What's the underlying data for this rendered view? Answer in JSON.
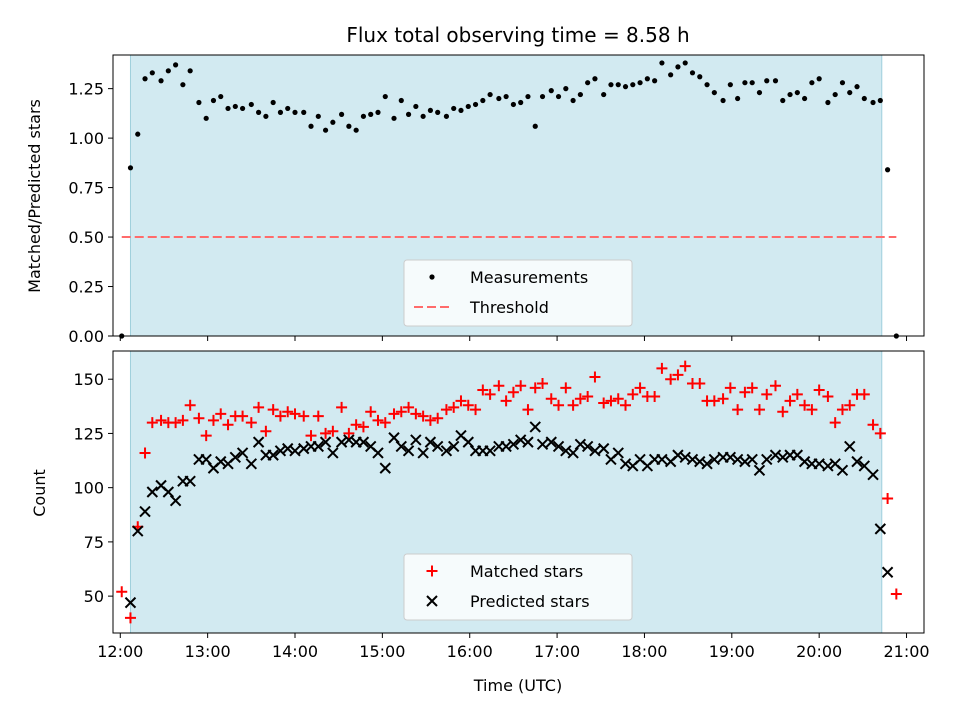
{
  "chart_data": [
    {
      "type": "scatter",
      "title": "Flux total observing time = 8.58 h",
      "ylabel": "Matched/Predicted stars",
      "xlabel": "",
      "ylim": [
        0,
        1.42
      ],
      "xlim": [
        "11:55",
        "21:12"
      ],
      "yticks": [
        "0.00",
        "0.25",
        "0.50",
        "0.75",
        "1.00",
        "1.25"
      ],
      "shaded_region": [
        "12:07",
        "20:43"
      ],
      "threshold": 0.5,
      "legend_position": "lower-center",
      "legend": [
        "Measurements",
        "Threshold"
      ],
      "series": [
        {
          "name": "Measurements",
          "x": [
            "12:01",
            "12:07",
            "12:12",
            "12:17",
            "12:22",
            "12:28",
            "12:33",
            "12:38",
            "12:43",
            "12:48",
            "12:54",
            "12:59",
            "13:04",
            "13:09",
            "13:14",
            "13:19",
            "13:24",
            "13:30",
            "13:35",
            "13:40",
            "13:45",
            "13:50",
            "13:55",
            "14:00",
            "14:06",
            "14:11",
            "14:16",
            "14:21",
            "14:26",
            "14:32",
            "14:37",
            "14:42",
            "14:47",
            "14:52",
            "14:57",
            "15:02",
            "15:08",
            "15:13",
            "15:18",
            "15:23",
            "15:28",
            "15:33",
            "15:38",
            "15:44",
            "15:49",
            "15:54",
            "15:59",
            "16:04",
            "16:09",
            "16:14",
            "16:20",
            "16:25",
            "16:30",
            "16:35",
            "16:40",
            "16:45",
            "16:50",
            "16:56",
            "17:01",
            "17:06",
            "17:11",
            "17:16",
            "17:21",
            "17:26",
            "17:32",
            "17:37",
            "17:42",
            "17:47",
            "17:52",
            "17:57",
            "18:02",
            "18:07",
            "18:12",
            "18:18",
            "18:23",
            "18:28",
            "18:33",
            "18:38",
            "18:43",
            "18:48",
            "18:54",
            "18:59",
            "19:04",
            "19:09",
            "19:14",
            "19:19",
            "19:24",
            "19:30",
            "19:35",
            "19:40",
            "19:45",
            "19:50",
            "19:55",
            "20:00",
            "20:06",
            "20:11",
            "20:16",
            "20:21",
            "20:26",
            "20:31",
            "20:37",
            "20:42",
            "20:47",
            "20:53"
          ],
          "y": [
            0.0,
            0.85,
            1.02,
            1.3,
            1.33,
            1.29,
            1.34,
            1.37,
            1.27,
            1.34,
            1.18,
            1.1,
            1.19,
            1.21,
            1.15,
            1.16,
            1.15,
            1.17,
            1.13,
            1.11,
            1.18,
            1.13,
            1.15,
            1.13,
            1.13,
            1.06,
            1.11,
            1.04,
            1.08,
            1.12,
            1.06,
            1.04,
            1.11,
            1.12,
            1.13,
            1.21,
            1.1,
            1.19,
            1.12,
            1.16,
            1.11,
            1.14,
            1.13,
            1.11,
            1.15,
            1.14,
            1.16,
            1.17,
            1.19,
            1.22,
            1.2,
            1.21,
            1.17,
            1.18,
            1.21,
            1.06,
            1.21,
            1.24,
            1.21,
            1.25,
            1.19,
            1.22,
            1.28,
            1.3,
            1.22,
            1.27,
            1.27,
            1.26,
            1.27,
            1.28,
            1.3,
            1.29,
            1.38,
            1.32,
            1.36,
            1.38,
            1.33,
            1.31,
            1.27,
            1.23,
            1.19,
            1.27,
            1.2,
            1.28,
            1.28,
            1.23,
            1.29,
            1.29,
            1.19,
            1.22,
            1.23,
            1.2,
            1.28,
            1.3,
            1.18,
            1.22,
            1.28,
            1.23,
            1.26,
            1.2,
            1.18,
            1.19,
            0.84,
            0.0
          ]
        },
        {
          "name": "Threshold",
          "x": [
            "12:01",
            "20:53"
          ],
          "y": [
            0.5,
            0.5
          ],
          "style": "dashed",
          "color": "#ff6b6b"
        }
      ]
    },
    {
      "type": "scatter",
      "title": "",
      "ylabel": "Count",
      "xlabel": "Time (UTC)",
      "ylim": [
        33,
        163
      ],
      "xlim": [
        "11:55",
        "21:12"
      ],
      "yticks": [
        "50",
        "75",
        "100",
        "125",
        "150"
      ],
      "xticks": [
        "12:00",
        "13:00",
        "14:00",
        "15:00",
        "16:00",
        "17:00",
        "18:00",
        "19:00",
        "20:00",
        "21:00"
      ],
      "shaded_region": [
        "12:07",
        "20:43"
      ],
      "legend_position": "lower-center",
      "legend": [
        "Matched stars",
        "Predicted stars"
      ],
      "series": [
        {
          "name": "Matched stars",
          "marker": "+",
          "color": "#ff0000",
          "x": [
            "12:01",
            "12:07",
            "12:12",
            "12:17",
            "12:22",
            "12:28",
            "12:33",
            "12:38",
            "12:43",
            "12:48",
            "12:54",
            "12:59",
            "13:04",
            "13:09",
            "13:14",
            "13:19",
            "13:24",
            "13:30",
            "13:35",
            "13:40",
            "13:45",
            "13:50",
            "13:55",
            "14:00",
            "14:06",
            "14:11",
            "14:16",
            "14:21",
            "14:26",
            "14:32",
            "14:37",
            "14:42",
            "14:47",
            "14:52",
            "14:57",
            "15:02",
            "15:08",
            "15:13",
            "15:18",
            "15:23",
            "15:28",
            "15:33",
            "15:38",
            "15:44",
            "15:49",
            "15:54",
            "15:59",
            "16:04",
            "16:09",
            "16:14",
            "16:20",
            "16:25",
            "16:30",
            "16:35",
            "16:40",
            "16:45",
            "16:50",
            "16:56",
            "17:01",
            "17:06",
            "17:11",
            "17:16",
            "17:21",
            "17:26",
            "17:32",
            "17:37",
            "17:42",
            "17:47",
            "17:52",
            "17:57",
            "18:02",
            "18:07",
            "18:12",
            "18:18",
            "18:23",
            "18:28",
            "18:33",
            "18:38",
            "18:43",
            "18:48",
            "18:54",
            "18:59",
            "19:04",
            "19:09",
            "19:14",
            "19:19",
            "19:24",
            "19:30",
            "19:35",
            "19:40",
            "19:45",
            "19:50",
            "19:55",
            "20:00",
            "20:06",
            "20:11",
            "20:16",
            "20:21",
            "20:26",
            "20:31",
            "20:37",
            "20:42",
            "20:47",
            "20:53"
          ],
          "y": [
            52,
            40,
            82,
            116,
            130,
            131,
            130,
            130,
            131,
            138,
            132,
            124,
            131,
            134,
            129,
            133,
            133,
            130,
            137,
            126,
            136,
            133,
            135,
            134,
            133,
            124,
            133,
            125,
            126,
            137,
            125,
            129,
            128,
            135,
            131,
            130,
            134,
            135,
            137,
            134,
            133,
            131,
            132,
            136,
            137,
            140,
            138,
            136,
            145,
            143,
            147,
            140,
            144,
            147,
            136,
            146,
            148,
            141,
            138,
            146,
            138,
            141,
            142,
            151,
            139,
            140,
            141,
            138,
            143,
            146,
            142,
            142,
            155,
            150,
            152,
            156,
            148,
            148,
            140,
            140,
            141,
            146,
            136,
            144,
            146,
            136,
            143,
            147,
            135,
            140,
            143,
            138,
            136,
            145,
            142,
            130,
            136,
            138,
            143,
            143,
            129,
            125,
            95,
            51
          ]
        },
        {
          "name": "Predicted stars",
          "marker": "x",
          "color": "#000000",
          "x": [
            "12:01",
            "12:07",
            "12:12",
            "12:17",
            "12:22",
            "12:28",
            "12:33",
            "12:38",
            "12:43",
            "12:48",
            "12:54",
            "12:59",
            "13:04",
            "13:09",
            "13:14",
            "13:19",
            "13:24",
            "13:30",
            "13:35",
            "13:40",
            "13:45",
            "13:50",
            "13:55",
            "14:00",
            "14:06",
            "14:11",
            "14:16",
            "14:21",
            "14:26",
            "14:32",
            "14:37",
            "14:42",
            "14:47",
            "14:52",
            "14:57",
            "15:02",
            "15:08",
            "15:13",
            "15:18",
            "15:23",
            "15:28",
            "15:33",
            "15:38",
            "15:44",
            "15:49",
            "15:54",
            "15:59",
            "16:04",
            "16:09",
            "16:14",
            "16:20",
            "16:25",
            "16:30",
            "16:35",
            "16:40",
            "16:45",
            "16:50",
            "16:56",
            "17:01",
            "17:06",
            "17:11",
            "17:16",
            "17:21",
            "17:26",
            "17:32",
            "17:37",
            "17:42",
            "17:47",
            "17:52",
            "17:57",
            "18:02",
            "18:07",
            "18:12",
            "18:18",
            "18:23",
            "18:28",
            "18:33",
            "18:38",
            "18:43",
            "18:48",
            "18:54",
            "18:59",
            "19:04",
            "19:09",
            "19:14",
            "19:19",
            "19:24",
            "19:30",
            "19:35",
            "19:40",
            "19:45",
            "19:50",
            "19:55",
            "20:00",
            "20:06",
            "20:11",
            "20:16",
            "20:21",
            "20:26",
            "20:31",
            "20:37",
            "20:42",
            "20:47",
            "20:53"
          ],
          "y": [
            null,
            47,
            80,
            89,
            98,
            101,
            98,
            94,
            103,
            103,
            113,
            113,
            109,
            112,
            111,
            114,
            116,
            111,
            121,
            115,
            115,
            117,
            118,
            117,
            118,
            119,
            119,
            121,
            116,
            121,
            122,
            121,
            121,
            119,
            116,
            109,
            123,
            119,
            117,
            122,
            116,
            121,
            119,
            117,
            119,
            124,
            121,
            117,
            117,
            117,
            119,
            119,
            120,
            122,
            121,
            128,
            120,
            121,
            119,
            117,
            116,
            120,
            119,
            117,
            118,
            113,
            116,
            111,
            110,
            113,
            110,
            113,
            113,
            112,
            115,
            114,
            113,
            112,
            111,
            113,
            114,
            114,
            113,
            112,
            113,
            108,
            113,
            115,
            114,
            115,
            115,
            112,
            111,
            111,
            110,
            111,
            108,
            119,
            112,
            110,
            106,
            81,
            61,
            null
          ]
        }
      ]
    }
  ]
}
